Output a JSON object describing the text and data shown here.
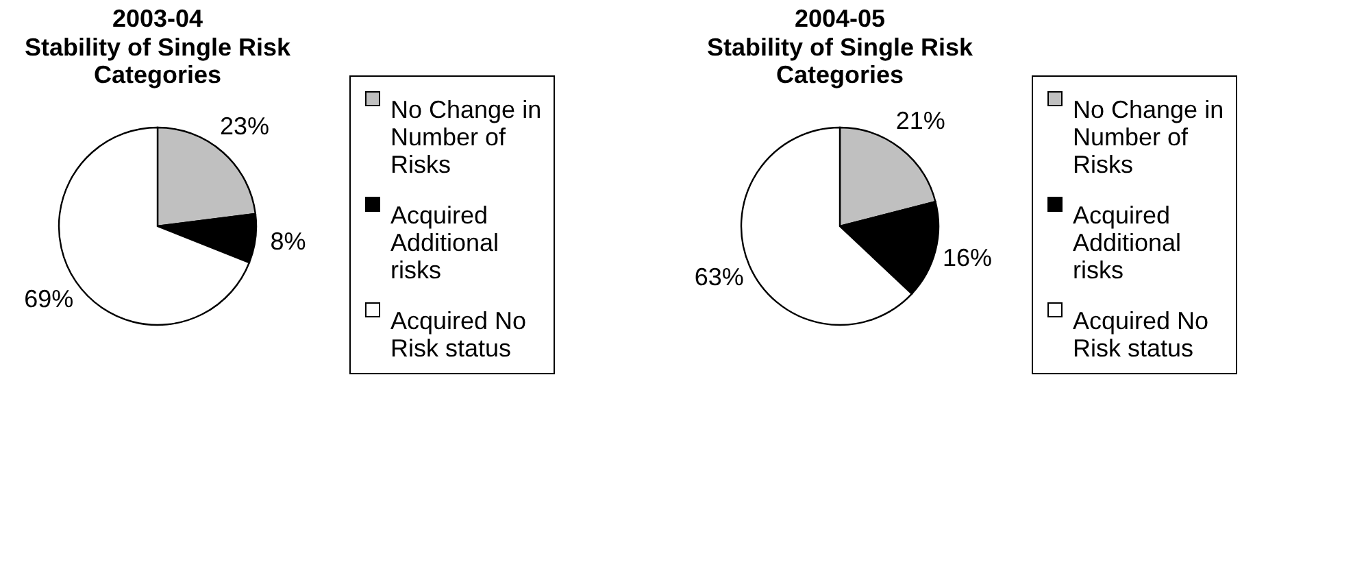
{
  "chart_data": [
    {
      "type": "pie",
      "title": "2003-04",
      "subtitle": "Stability of Single Risk Categories",
      "categories": [
        "No Change in Number of Risks",
        "Acquired Additional risks",
        "Acquired No Risk status"
      ],
      "values": [
        23,
        8,
        69
      ],
      "value_labels": [
        "23%",
        "8%",
        "69%"
      ],
      "colors": [
        "#c0c0c0",
        "#000000",
        "#ffffff"
      ],
      "legend": "right"
    },
    {
      "type": "pie",
      "title": "2004-05",
      "subtitle": "Stability of Single Risk Categories",
      "categories": [
        "No Change in Number of Risks",
        "Acquired Additional risks",
        "Acquired No Risk status"
      ],
      "values": [
        21,
        16,
        63
      ],
      "value_labels": [
        "21%",
        "16%",
        "63%"
      ],
      "colors": [
        "#c0c0c0",
        "#000000",
        "#ffffff"
      ],
      "legend": "right"
    }
  ]
}
